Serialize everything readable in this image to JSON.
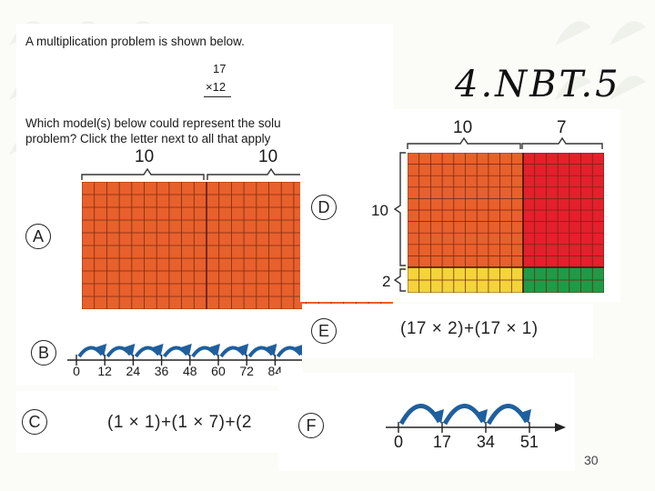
{
  "slide": {
    "title": "4.NBT.5",
    "page_number": "30"
  },
  "problem": {
    "intro": "A multiplication problem is shown below.",
    "multiplicand": "17",
    "multiplier": "×12",
    "question_line1": "Which model(s) below could represent the solu",
    "question_line2": "problem? Click the letter next to all that apply"
  },
  "options": {
    "A": {
      "letter": "A",
      "left_label": "10",
      "right_label": "10"
    },
    "B": {
      "letter": "B",
      "ticks": [
        "0",
        "12",
        "24",
        "36",
        "48",
        "60",
        "72",
        "84"
      ]
    },
    "C": {
      "letter": "C",
      "expression": "(1 × 1)+(1 × 7)+(2"
    },
    "D": {
      "letter": "D",
      "top_left": "10",
      "top_right": "7",
      "side_top": "10",
      "side_bottom": "2"
    },
    "E": {
      "letter": "E",
      "expression": "(17 × 2)+(17 × 1)"
    },
    "F": {
      "letter": "F",
      "ticks": [
        "0",
        "17",
        "34",
        "51"
      ]
    }
  },
  "colors": {
    "orange": "#e8602c",
    "red": "#e3202c",
    "yellow": "#f4d33b",
    "green": "#1f9a47",
    "arc_blue": "#1f5f9e"
  }
}
